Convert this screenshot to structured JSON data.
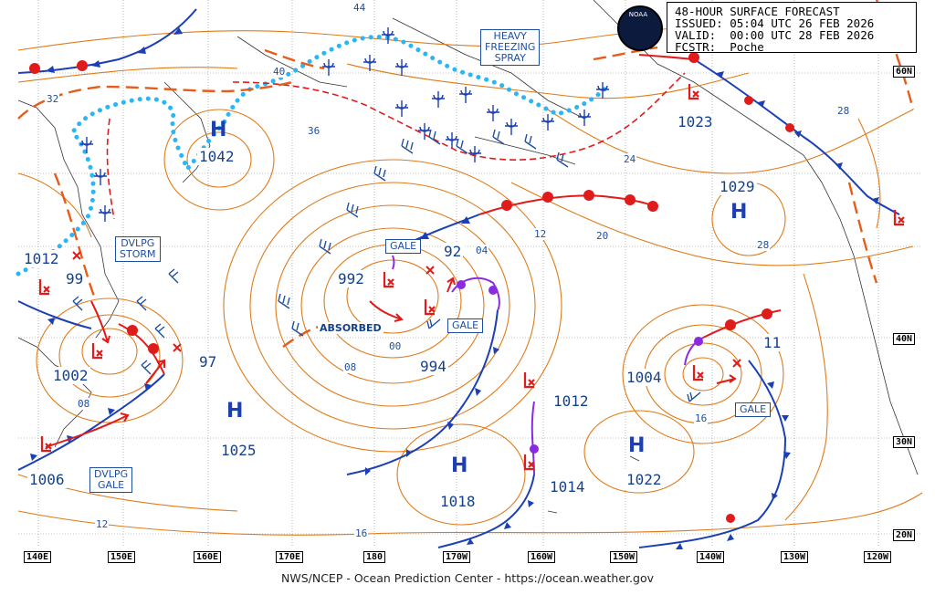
{
  "header": {
    "line1": "48-HOUR SURFACE FORECAST",
    "line2": "ISSUED: 05:04 UTC 26 FEB 2026",
    "line3": "VALID:  00:00 UTC 28 FEB 2026",
    "line4": "FCSTR:  Poche"
  },
  "logo_text": "NOAA",
  "boxes": {
    "freezing_spray": "HEAVY\nFREEZING\nSPRAY",
    "dvlpg_storm": "DVLPG\nSTORM",
    "dvlpg_gale": "DVLPG\nGALE",
    "gale_nw": "GALE",
    "gale_center": "GALE",
    "gale_east": "GALE"
  },
  "absorbed": "ABSORBED",
  "highs": [
    {
      "symbol": "H",
      "pressure": "1042"
    },
    {
      "symbol": "H",
      "pressure": "1029"
    },
    {
      "symbol": "H",
      "pressure": "1025"
    },
    {
      "symbol": "H",
      "pressure": "1018"
    },
    {
      "symbol": "H",
      "pressure": "1022"
    }
  ],
  "lows": [
    {
      "pressure": "1012"
    },
    {
      "pressure": "992"
    },
    {
      "pressure": "994"
    },
    {
      "pressure": "1002"
    },
    {
      "pressure": "1006"
    },
    {
      "pressure": "1004"
    },
    {
      "pressure": "1012"
    },
    {
      "pressure": "1014"
    },
    {
      "pressure": "1023"
    }
  ],
  "prior_positions": [
    "99",
    "92",
    "97",
    "11"
  ],
  "contour_labels": [
    "44",
    "40",
    "36",
    "32",
    "24",
    "28",
    "28",
    "20",
    "16",
    "12",
    "12",
    "08",
    "08",
    "04",
    "00",
    "16"
  ],
  "lat_labels": [
    "60N",
    "40N",
    "30N",
    "20N"
  ],
  "lon_labels": [
    "140E",
    "150E",
    "160E",
    "170E",
    "180",
    "170W",
    "160W",
    "150W",
    "140W",
    "130W",
    "120W"
  ],
  "footer": "NWS/NCEP - Ocean Prediction Center - https://ocean.weather.gov",
  "colors": {
    "isobar": "#e07b1a",
    "cold_front": "#1b3fb5",
    "warm_front": "#e01b1b",
    "occluded": "#8a2be2",
    "ice_edge": "#29b6f6",
    "label": "#1f4e9f"
  }
}
